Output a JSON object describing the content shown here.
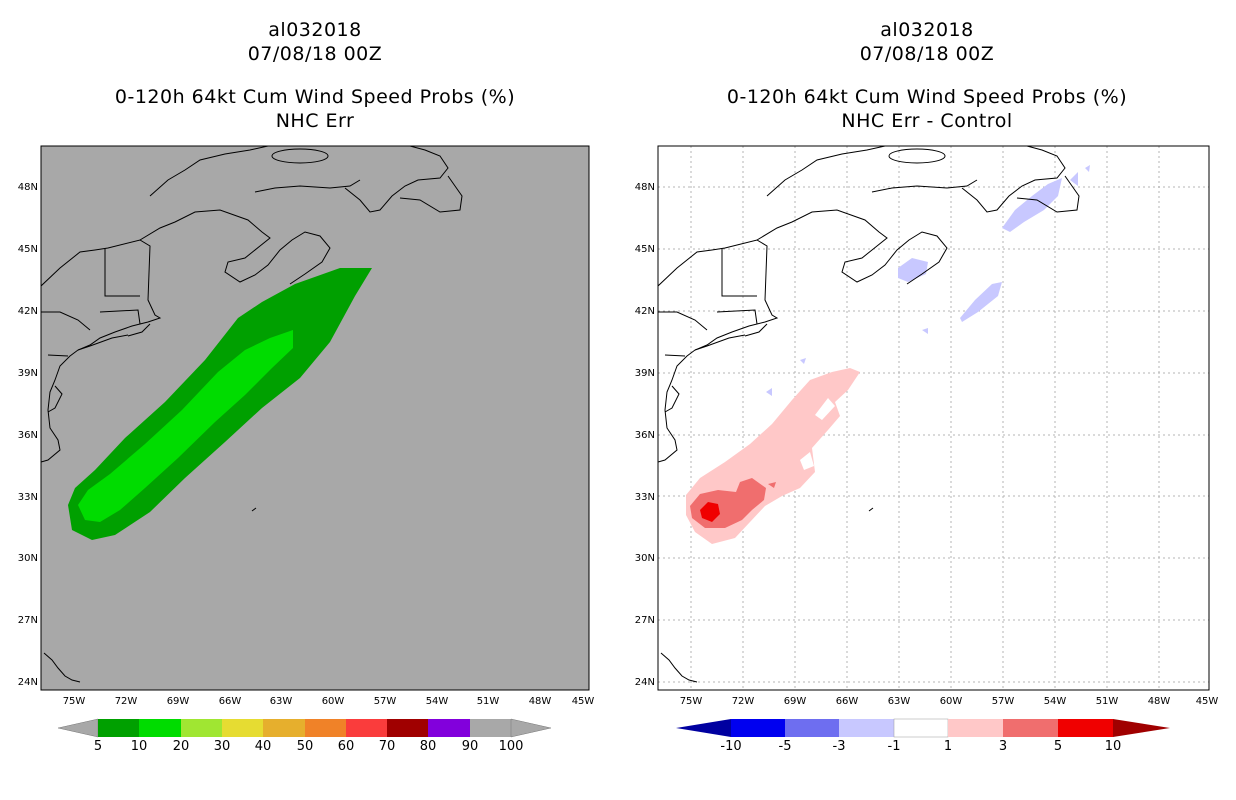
{
  "panels": [
    {
      "storm_id": "al032018",
      "datetime": "07/08/18 00Z",
      "product": "0-120h 64kt Cum Wind Speed Probs (%)",
      "subtitle": "NHC Err",
      "background": "#a8a8a8",
      "grid": false,
      "lat_labels": [
        "48N",
        "45N",
        "42N",
        "39N",
        "36N",
        "33N",
        "30N",
        "27N",
        "24N"
      ],
      "lon_labels": [
        "75W",
        "72W",
        "69W",
        "66W",
        "63W",
        "60W",
        "57W",
        "54W",
        "51W",
        "48W",
        "45W"
      ],
      "colorbar": {
        "labels": [
          "5",
          "10",
          "20",
          "30",
          "40",
          "50",
          "60",
          "70",
          "80",
          "90",
          "100"
        ],
        "colors": [
          "#00a000",
          "#00dc00",
          "#a0e632",
          "#e6dc32",
          "#e6af2d",
          "#f08228",
          "#fa3c3c",
          "#a00000",
          "#8200dc"
        ]
      },
      "contours": [
        {
          "level": "5-10 %",
          "color": "#00a000"
        },
        {
          "level": "10-20 %",
          "color": "#00dc00"
        }
      ]
    },
    {
      "storm_id": "al032018",
      "datetime": "07/08/18 00Z",
      "product": "0-120h 64kt Cum Wind Speed Probs (%)",
      "subtitle": "NHC Err - Control",
      "background": "#ffffff",
      "grid": true,
      "lat_labels": [
        "48N",
        "45N",
        "42N",
        "39N",
        "36N",
        "33N",
        "30N",
        "27N",
        "24N"
      ],
      "lon_labels": [
        "75W",
        "72W",
        "69W",
        "66W",
        "63W",
        "60W",
        "57W",
        "54W",
        "51W",
        "48W",
        "45W"
      ],
      "colorbar": {
        "labels": [
          "-10",
          "-5",
          "-3",
          "-1",
          "1",
          "3",
          "5",
          "10"
        ],
        "colors": [
          "#0000a0",
          "#0000f0",
          "#6e6ef0",
          "#c8c8ff",
          "#ffffff",
          "#ffc8c8",
          "#f06e6e",
          "#f00000",
          "#a00000"
        ]
      },
      "contours": [
        {
          "level": "1 to 3",
          "color": "#ffc8c8"
        },
        {
          "level": "3 to 5",
          "color": "#f06e6e"
        },
        {
          "level": "5 to 10",
          "color": "#f00000"
        },
        {
          "level": "-3 to -1",
          "color": "#c8c8ff"
        }
      ]
    }
  ]
}
